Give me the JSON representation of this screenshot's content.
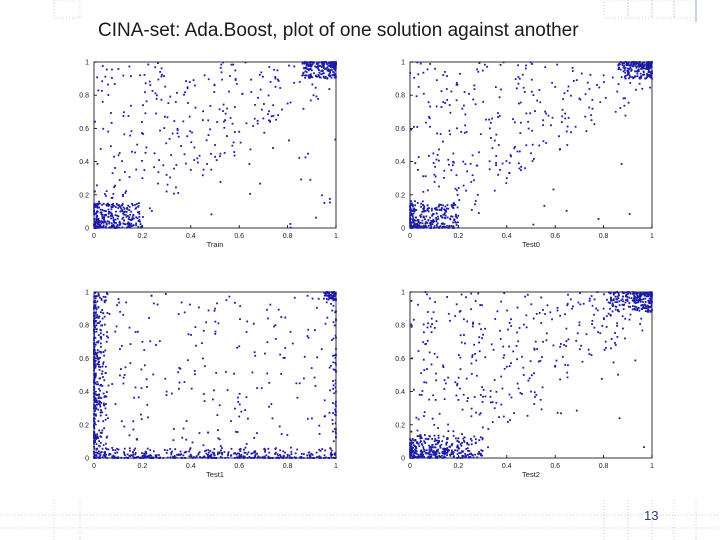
{
  "title": "CINA-set: Ada.Boost, plot of one solution against another",
  "page_number": "13",
  "colors": {
    "points": "#1a1aa6",
    "axes": "#000000",
    "decoration": "#c9cfe0"
  },
  "chart_data": [
    {
      "type": "scatter",
      "xlabel": "Train",
      "ylabel": "",
      "xlim": [
        0,
        1
      ],
      "ylim": [
        0,
        1
      ],
      "xticks": [
        "0",
        "0.2",
        "0.4",
        "0.6",
        "0.8",
        "1"
      ],
      "yticks": [
        "0",
        "0.2",
        "0.4",
        "0.6",
        "0.8",
        "1"
      ],
      "grid": false,
      "distribution": "Dense clusters near (0,0) and (1,1) with scattered points across the upper-left triangle above the diagonal",
      "points": [
        [
          0.02,
          0.03
        ],
        [
          0.05,
          0.08
        ],
        [
          0.08,
          0.02
        ],
        [
          0.1,
          0.12
        ],
        [
          0.15,
          0.05
        ],
        [
          0.12,
          0.2
        ],
        [
          0.2,
          0.3
        ],
        [
          0.25,
          0.45
        ],
        [
          0.3,
          0.22
        ],
        [
          0.35,
          0.55
        ],
        [
          0.4,
          0.35
        ],
        [
          0.45,
          0.65
        ],
        [
          0.5,
          0.5
        ],
        [
          0.55,
          0.72
        ],
        [
          0.6,
          0.58
        ],
        [
          0.65,
          0.82
        ],
        [
          0.7,
          0.66
        ],
        [
          0.75,
          0.9
        ],
        [
          0.8,
          0.75
        ],
        [
          0.85,
          0.88
        ],
        [
          0.9,
          0.95
        ],
        [
          0.95,
          0.97
        ],
        [
          0.98,
          0.99
        ],
        [
          0.97,
          0.92
        ]
      ]
    },
    {
      "type": "scatter",
      "xlabel": "Test0",
      "ylabel": "",
      "xlim": [
        0,
        1
      ],
      "ylim": [
        0,
        1
      ],
      "xticks": [
        "0",
        "0.2",
        "0.4",
        "0.6",
        "0.8",
        "1"
      ],
      "yticks": [
        "0",
        "0.2",
        "0.4",
        "0.6",
        "0.8",
        "1"
      ],
      "grid": false,
      "distribution": "Dense clusters near (0,0) and (1,1) with scattered points spread across the plot, concentrated above the diagonal",
      "points": [
        [
          0.02,
          0.02
        ],
        [
          0.06,
          0.1
        ],
        [
          0.1,
          0.04
        ],
        [
          0.12,
          0.25
        ],
        [
          0.18,
          0.12
        ],
        [
          0.22,
          0.4
        ],
        [
          0.28,
          0.2
        ],
        [
          0.33,
          0.6
        ],
        [
          0.4,
          0.3
        ],
        [
          0.45,
          0.75
        ],
        [
          0.5,
          0.45
        ],
        [
          0.55,
          0.62
        ],
        [
          0.6,
          0.85
        ],
        [
          0.65,
          0.5
        ],
        [
          0.7,
          0.78
        ],
        [
          0.75,
          0.65
        ],
        [
          0.8,
          0.92
        ],
        [
          0.85,
          0.7
        ],
        [
          0.9,
          0.96
        ],
        [
          0.95,
          0.9
        ],
        [
          0.98,
          0.98
        ],
        [
          0.96,
          0.99
        ]
      ]
    },
    {
      "type": "scatter",
      "xlabel": "Test1",
      "ylabel": "",
      "xlim": [
        0,
        1
      ],
      "ylim": [
        0,
        1
      ],
      "xticks": [
        "0",
        "0.2",
        "0.4",
        "0.6",
        "0.8",
        "1"
      ],
      "yticks": [
        "0",
        "0.2",
        "0.4",
        "0.6",
        "0.8",
        "1"
      ],
      "grid": false,
      "distribution": "Dense bands along the left edge (x near 0) and bottom edge (y near 0), plus a cluster near (1,1) and sparse points throughout",
      "points": [
        [
          0.01,
          0.05
        ],
        [
          0.01,
          0.3
        ],
        [
          0.02,
          0.55
        ],
        [
          0.01,
          0.8
        ],
        [
          0.02,
          0.98
        ],
        [
          0.05,
          0.02
        ],
        [
          0.2,
          0.01
        ],
        [
          0.4,
          0.02
        ],
        [
          0.6,
          0.01
        ],
        [
          0.8,
          0.02
        ],
        [
          0.98,
          0.03
        ],
        [
          0.3,
          0.4
        ],
        [
          0.45,
          0.6
        ],
        [
          0.6,
          0.25
        ],
        [
          0.75,
          0.8
        ],
        [
          0.2,
          0.7
        ],
        [
          0.85,
          0.45
        ],
        [
          0.98,
          0.98
        ],
        [
          0.95,
          0.96
        ],
        [
          0.5,
          0.9
        ]
      ]
    },
    {
      "type": "scatter",
      "xlabel": "Test2",
      "ylabel": "",
      "xlim": [
        0,
        1
      ],
      "ylim": [
        0,
        1
      ],
      "xticks": [
        "0",
        "0.2",
        "0.4",
        "0.6",
        "0.8",
        "1"
      ],
      "yticks": [
        "0",
        "0.2",
        "0.4",
        "0.6",
        "0.8",
        "1"
      ],
      "grid": false,
      "distribution": "Dense cluster near (0,0) extending along the bottom, dense cluster near (1,1), scattered points mostly above the diagonal",
      "points": [
        [
          0.02,
          0.03
        ],
        [
          0.08,
          0.05
        ],
        [
          0.15,
          0.08
        ],
        [
          0.22,
          0.04
        ],
        [
          0.3,
          0.12
        ],
        [
          0.1,
          0.2
        ],
        [
          0.2,
          0.35
        ],
        [
          0.35,
          0.3
        ],
        [
          0.4,
          0.55
        ],
        [
          0.5,
          0.4
        ],
        [
          0.55,
          0.7
        ],
        [
          0.6,
          0.55
        ],
        [
          0.7,
          0.8
        ],
        [
          0.75,
          0.62
        ],
        [
          0.8,
          0.9
        ],
        [
          0.88,
          0.78
        ],
        [
          0.92,
          0.95
        ],
        [
          0.97,
          0.98
        ],
        [
          0.99,
          0.96
        ],
        [
          0.65,
          0.92
        ]
      ]
    }
  ]
}
